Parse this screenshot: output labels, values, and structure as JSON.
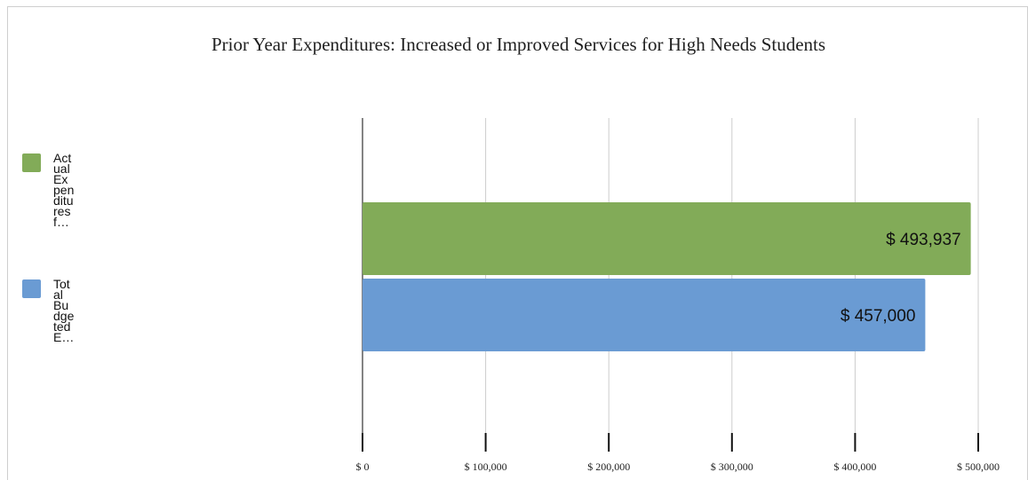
{
  "chart_data": {
    "type": "bar",
    "orientation": "horizontal",
    "title": "Prior Year Expenditures: Increased or Improved Services for High Needs Students",
    "xlim": [
      0,
      500000
    ],
    "grid": true,
    "legend_position": "left",
    "x_ticks": [
      "$ 0",
      "$ 100,000",
      "$ 200,000",
      "$ 300,000",
      "$ 400,000",
      "$ 500,000"
    ],
    "series": [
      {
        "name": "Actual Expenditures f…",
        "legend_text": "Act\nual\nEx\npen\nditu\nres\nf…",
        "value": 493937,
        "label": "$ 493,937",
        "color": "#82ab58"
      },
      {
        "name": "Total Budgeted E…",
        "legend_text": "Tot\nal\nBu\ndge\nted\nE…",
        "value": 457000,
        "label": "$ 457,000",
        "color": "#6a9bd3"
      }
    ]
  }
}
